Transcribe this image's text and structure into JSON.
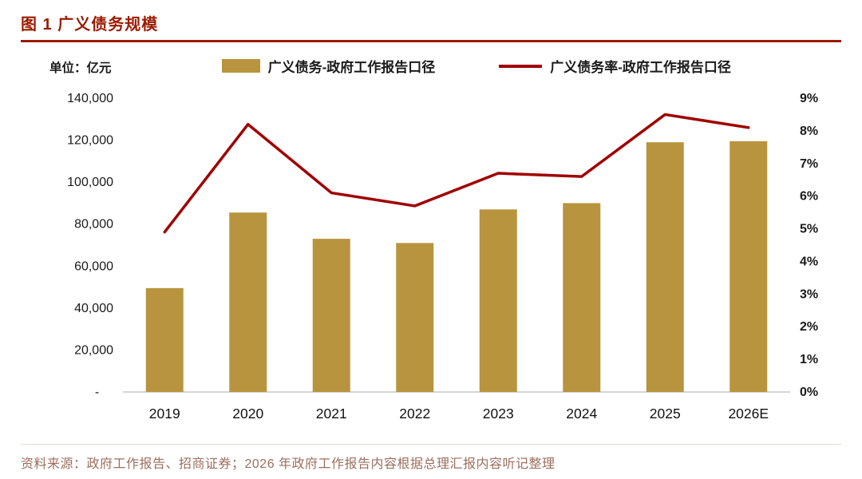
{
  "header": {
    "title": "图 1 广义债务规模"
  },
  "colors": {
    "accent_red": "#9B1B00",
    "bar_gold": "#B8943E",
    "line_red": "#A00000",
    "axis_gray": "#C9C9C9",
    "source_brown": "#9C6F5E",
    "text_black": "#1A1A1A"
  },
  "chart": {
    "unit_label": "单位：亿元",
    "legend": [
      {
        "label": "广义债务-政府工作报告口径",
        "type": "bar"
      },
      {
        "label": "广义债务率-政府工作报告口径",
        "type": "line"
      }
    ]
  },
  "chart_data": {
    "type": "bar+line",
    "title": "广义债务规模",
    "categories": [
      "2019",
      "2020",
      "2021",
      "2022",
      "2023",
      "2024",
      "2025",
      "2026E"
    ],
    "series": [
      {
        "name": "广义债务-政府工作报告口径",
        "type": "bar",
        "axis": "left",
        "values": [
          49500,
          85500,
          73000,
          71000,
          87000,
          90000,
          119000,
          119500
        ]
      },
      {
        "name": "广义债务率-政府工作报告口径",
        "type": "line",
        "axis": "right",
        "values": [
          4.9,
          8.2,
          6.1,
          5.7,
          6.7,
          6.6,
          8.5,
          8.1
        ]
      }
    ],
    "left_axis": {
      "min": 0,
      "max": 140000,
      "step": 20000,
      "zero_label": "-"
    },
    "right_axis": {
      "min": 0,
      "max": 9,
      "step": 1,
      "suffix": "%"
    },
    "grid": false,
    "legend_position": "top"
  },
  "footer": {
    "source": "资料来源：政府工作报告、招商证券；2026 年政府工作报告内容根据总理汇报内容听记整理"
  }
}
